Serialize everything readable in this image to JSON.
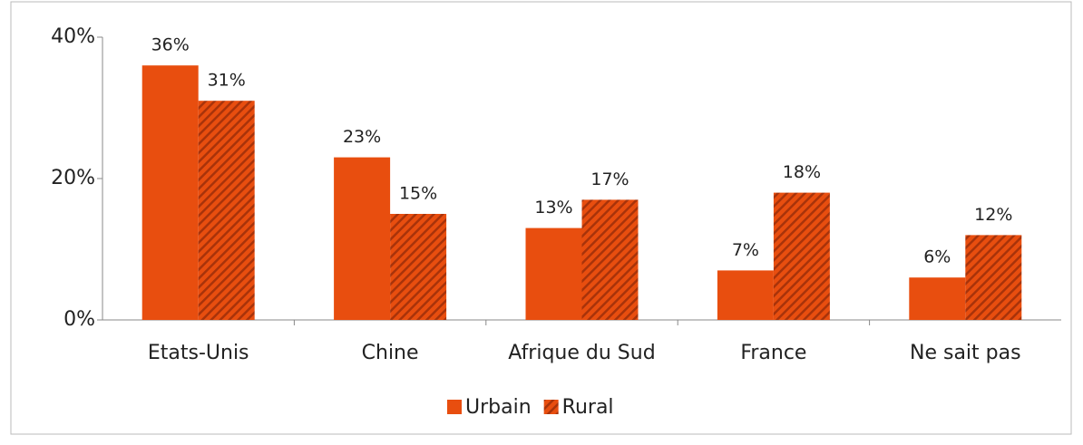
{
  "chart_data": {
    "type": "bar",
    "categories": [
      "Etats-Unis",
      "Chine",
      "Afrique du Sud",
      "France",
      "Ne sait pas"
    ],
    "series": [
      {
        "name": "Urbain",
        "color": "#e84e0f",
        "values": [
          36,
          23,
          13,
          7,
          6
        ],
        "value_labels": [
          "36%",
          "23%",
          "13%",
          "7%",
          "6%"
        ]
      },
      {
        "name": "Rural",
        "color": "#e84e0f",
        "hatch": true,
        "values": [
          31,
          15,
          17,
          18,
          12
        ],
        "value_labels": [
          "31%",
          "15%",
          "17%",
          "18%",
          "12%"
        ]
      }
    ],
    "ylim": [
      0,
      40
    ],
    "yticks": [
      {
        "value": 0,
        "label": "0%"
      },
      {
        "value": 20,
        "label": "20%"
      },
      {
        "value": 40,
        "label": "40%"
      }
    ],
    "legend": "bottom"
  }
}
